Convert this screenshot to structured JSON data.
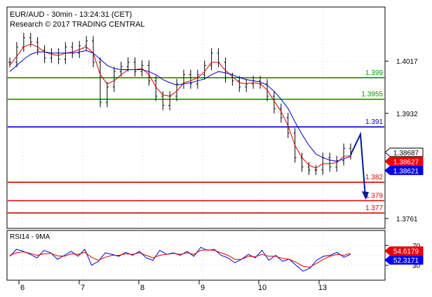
{
  "header": {
    "line1": "EUR/AUD - 30min - 13:24:31 (CET)",
    "line2": "Research © 2017 TRADING CENTRAL"
  },
  "rsi_panel": {
    "label": "RSI14 - 9MA"
  },
  "chart_data": [
    {
      "type": "line",
      "subtype": "candlestick-price-chart",
      "symbol": "EUR/AUD",
      "timeframe": "30min",
      "x_tick_labels": [
        "6",
        "7",
        "8",
        "9",
        "10",
        "13"
      ],
      "y_tick_labels": [
        "1.4017",
        "1.3932",
        "1.3761"
      ],
      "ylim": [
        1.3745,
        1.4105
      ],
      "levels": [
        {
          "value": 1.399,
          "label": "1.399",
          "role": "resistance",
          "color": "#009900"
        },
        {
          "value": 1.3955,
          "label": "1.3955",
          "role": "resistance",
          "color": "#009900"
        },
        {
          "value": 1.391,
          "label": "1.391",
          "role": "pivot",
          "color": "#0000cc"
        },
        {
          "value": 1.382,
          "label": "1.382",
          "role": "support",
          "color": "#dd0000"
        },
        {
          "value": 1.379,
          "label": "1.379",
          "role": "support",
          "color": "#dd0000"
        },
        {
          "value": 1.377,
          "label": "1.377",
          "role": "support",
          "color": "#dd0000"
        }
      ],
      "price_tags": [
        {
          "value": 1.38687,
          "label": "1.38687",
          "color": "#000000"
        },
        {
          "value": 1.38627,
          "label": "1.38627",
          "color": "#ee0000"
        },
        {
          "value": 1.38621,
          "label": "1.38621",
          "color": "#0000ee"
        }
      ],
      "series": [
        {
          "role": "price",
          "color": "#000000",
          "values": [
            1.4015,
            1.404,
            1.4055,
            1.4048,
            1.4035,
            1.4022,
            1.403,
            1.402,
            1.404,
            1.403,
            1.4042,
            1.405,
            1.4015,
            1.395,
            1.3975,
            1.4,
            1.4008,
            1.4015,
            1.4,
            1.401,
            1.3985,
            1.396,
            1.3945,
            1.396,
            1.398,
            1.3995,
            1.398,
            1.3995,
            1.401,
            1.403,
            1.4015,
            1.399,
            1.3985,
            1.3975,
            1.398,
            1.3985,
            1.398,
            1.396,
            1.394,
            1.3925,
            1.39,
            1.386,
            1.3845,
            1.384,
            1.384,
            1.386,
            1.3845,
            1.3855,
            1.3875,
            1.3865
          ]
        },
        {
          "role": "moving-average-fast",
          "color": "#dd0000",
          "values": [
            1.401,
            1.4025,
            1.404,
            1.4045,
            1.404,
            1.4032,
            1.4028,
            1.4026,
            1.403,
            1.4032,
            1.4036,
            1.404,
            1.403,
            1.3995,
            1.398,
            1.3985,
            1.3995,
            1.4003,
            1.4003,
            1.4005,
            1.3995,
            1.3975,
            1.3962,
            1.396,
            1.3968,
            1.3982,
            1.3985,
            1.399,
            1.4,
            1.4015,
            1.4015,
            1.4002,
            1.3992,
            1.3982,
            1.398,
            1.3982,
            1.398,
            1.397,
            1.3952,
            1.3935,
            1.3912,
            1.388,
            1.386,
            1.3848,
            1.3843,
            1.385,
            1.385,
            1.3852,
            1.3862,
            1.3863
          ]
        },
        {
          "role": "moving-average-slow",
          "color": "#0000cc",
          "values": [
            1.4,
            1.401,
            1.402,
            1.4028,
            1.4032,
            1.4032,
            1.403,
            1.403,
            1.403,
            1.403,
            1.4032,
            1.4034,
            1.403,
            1.402,
            1.401,
            1.4005,
            1.4003,
            1.4003,
            1.4003,
            1.4003,
            1.4,
            1.3995,
            1.3987,
            1.3982,
            1.3978,
            1.398,
            1.3982,
            1.3985,
            1.3988,
            1.3995,
            1.4,
            1.3998,
            1.3995,
            1.399,
            1.3987,
            1.3985,
            1.3983,
            1.3978,
            1.3968,
            1.3955,
            1.394,
            1.3918,
            1.3898,
            1.388,
            1.3866,
            1.386,
            1.3856,
            1.3854,
            1.3858,
            1.3862
          ]
        }
      ]
    },
    {
      "type": "line",
      "title": "RSI14 - 9MA",
      "y_tick_labels": [
        "70",
        "30"
      ],
      "ylim": [
        0,
        100
      ],
      "price_tags": [
        {
          "value": 54.6179,
          "label": "54.6179",
          "color": "#ee0000"
        },
        {
          "value": 52.3171,
          "label": "52.3171",
          "color": "#0000ee"
        }
      ],
      "series": [
        {
          "role": "rsi",
          "color": "#0000cc",
          "values": [
            48,
            62,
            58,
            52,
            45,
            60,
            55,
            42,
            50,
            58,
            48,
            62,
            30,
            38,
            55,
            52,
            48,
            56,
            50,
            58,
            45,
            40,
            60,
            52,
            55,
            50,
            58,
            48,
            66,
            60,
            62,
            50,
            45,
            35,
            42,
            52,
            45,
            60,
            40,
            50,
            38,
            42,
            30,
            18,
            24,
            40,
            48,
            50,
            56,
            46,
            52
          ]
        },
        {
          "role": "rsi-ma",
          "color": "#dd0000",
          "values": [
            50,
            55,
            57,
            54,
            50,
            53,
            54,
            49,
            48,
            53,
            52,
            56,
            46,
            40,
            46,
            50,
            50,
            53,
            52,
            55,
            50,
            45,
            50,
            52,
            54,
            52,
            55,
            52,
            60,
            61,
            60,
            55,
            50,
            42,
            42,
            48,
            47,
            52,
            48,
            48,
            44,
            42,
            36,
            28,
            26,
            34,
            42,
            48,
            52,
            50,
            54
          ]
        }
      ]
    }
  ]
}
